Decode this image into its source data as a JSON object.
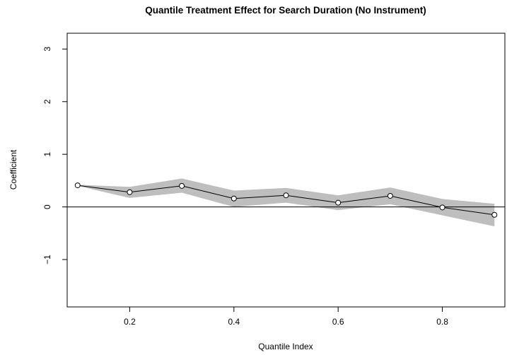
{
  "chart_data": {
    "type": "line",
    "title": "Quantile Treatment Effect for Search Duration (No Instrument)",
    "xlabel": "Quantile Index",
    "ylabel": "Coefficient",
    "xlim": [
      0.08,
      0.92
    ],
    "ylim": [
      -1.9,
      3.3
    ],
    "x_ticks": [
      0.2,
      0.4,
      0.6,
      0.8
    ],
    "x_tick_labels": [
      "0.2",
      "0.4",
      "0.6",
      "0.8"
    ],
    "y_ticks": [
      -1,
      0,
      1,
      2,
      3
    ],
    "y_tick_labels": [
      "−1",
      "0",
      "1",
      "2",
      "3"
    ],
    "reference_line": 0,
    "grid": false,
    "legend": "none",
    "band_color": "#bebebe",
    "line_color": "#000000",
    "series": [
      {
        "x": [
          0.1,
          0.2,
          0.3,
          0.4,
          0.5,
          0.6,
          0.7,
          0.8,
          0.9
        ],
        "values": [
          0.41,
          0.28,
          0.4,
          0.16,
          0.22,
          0.08,
          0.21,
          -0.01,
          -0.15
        ],
        "lower": [
          0.4,
          0.17,
          0.27,
          0.0,
          0.08,
          -0.06,
          0.05,
          -0.16,
          -0.37
        ],
        "upper": [
          0.42,
          0.38,
          0.54,
          0.31,
          0.36,
          0.22,
          0.37,
          0.15,
          0.06
        ]
      }
    ]
  }
}
